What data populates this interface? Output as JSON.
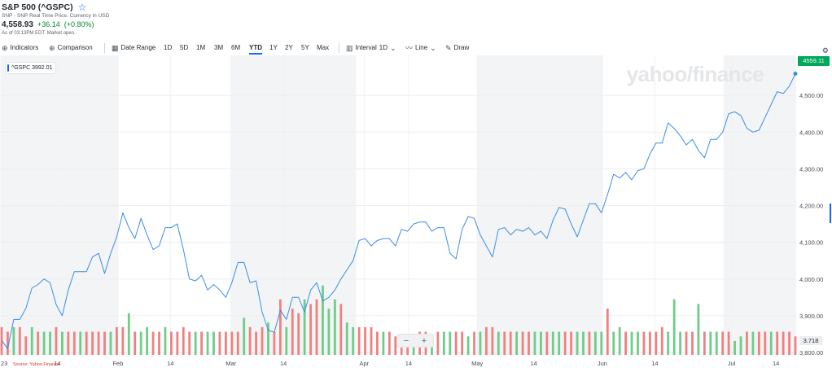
{
  "header": {
    "title": "S&P 500 (^GSPC)",
    "subtitle": "SNP - SNP Real Time Price. Currency in USD",
    "price": "4,558.93",
    "change": "+36.14",
    "change_pct": "(+0.80%)",
    "as_of": "As of 03:13PM EDT. Market open."
  },
  "toolbar": {
    "indicators": "Indicators",
    "comparison": "Comparison",
    "date_range": "Date Range",
    "ranges": [
      "1D",
      "5D",
      "1M",
      "3M",
      "6M",
      "YTD",
      "1Y",
      "2Y",
      "5Y",
      "Max"
    ],
    "active_range": "YTD",
    "interval": "Interval",
    "interval_value": "1D",
    "chart_type": "Line",
    "draw": "Draw"
  },
  "legend": {
    "label": "^GSPC 3992.01"
  },
  "last_price_label": "4559.11",
  "volume_label": "3.718",
  "source": "Source: Yahoo Finance",
  "watermark": "yahoo/finance",
  "zoom": {
    "minus": "−",
    "plus": "+"
  },
  "colors": {
    "line": "#3a8ee6",
    "up_volume": "#6fcc89",
    "down_volume": "#f08080",
    "accent": "#0f69ff",
    "positive": "#008a2e"
  },
  "icons": {
    "star": "star-icon",
    "indicators": "plus-circle-icon",
    "comparison": "plus-circle-icon",
    "date_range": "calendar-icon",
    "interval": "candle-icon",
    "line": "line-chart-icon",
    "draw": "pencil-icon",
    "settings": "gear-icon"
  },
  "chart_data": {
    "type": "line",
    "title": "S&P 500 (^GSPC)",
    "xlabel": "",
    "ylabel": "",
    "ylim": [
      3800,
      4600
    ],
    "y_ticks": [
      3800,
      3900,
      4000,
      4100,
      4200,
      4300,
      4400,
      4500
    ],
    "y_tick_labels": [
      "3,800.00",
      "3,900.00",
      "4,000.00",
      "4,100.00",
      "4,200.00",
      "4,300.00",
      "4,400.00",
      "4,500.00"
    ],
    "x_tick_labels": [
      {
        "label": "23",
        "date": "2023-01-03"
      },
      {
        "label": "14",
        "date": "2023-01-17"
      },
      {
        "label": "Feb",
        "date": "2023-02-01"
      },
      {
        "label": "14",
        "date": "2023-02-14"
      },
      {
        "label": "Mar",
        "date": "2023-03-01"
      },
      {
        "label": "14",
        "date": "2023-03-14"
      },
      {
        "label": "Apr",
        "date": "2023-04-03"
      },
      {
        "label": "14",
        "date": "2023-04-14"
      },
      {
        "label": "May",
        "date": "2023-05-01"
      },
      {
        "label": "14",
        "date": "2023-05-15"
      },
      {
        "label": "Jun",
        "date": "2023-06-01"
      },
      {
        "label": "14",
        "date": "2023-06-14"
      },
      {
        "label": "Jul",
        "date": "2023-07-03"
      },
      {
        "label": "14",
        "date": "2023-07-14"
      }
    ],
    "month_bands": [
      "2023-01",
      "2023-03",
      "2023-05",
      "2023-07"
    ],
    "grid": true,
    "legend": "top-left",
    "series": [
      {
        "name": "^GSPC",
        "values": [
          3833,
          3810,
          3890,
          3890,
          3920,
          3975,
          3985,
          4000,
          3990,
          3930,
          3900,
          3970,
          4020,
          4020,
          4020,
          4060,
          4070,
          4015,
          4070,
          4115,
          4180,
          4140,
          4110,
          4165,
          4120,
          4080,
          4090,
          4140,
          4140,
          4150,
          4080,
          4000,
          3995,
          4010,
          3970,
          3985,
          3970,
          3950,
          3990,
          4045,
          4045,
          3990,
          3995,
          3910,
          3860,
          3855,
          3915,
          3890,
          3950,
          3950,
          3910,
          3970,
          3990,
          3940,
          3950,
          3970,
          4000,
          4025,
          4050,
          4105,
          4110,
          4090,
          4105,
          4110,
          4110,
          4090,
          4135,
          4130,
          4150,
          4155,
          4155,
          4130,
          4140,
          4140,
          4070,
          4055,
          4135,
          4170,
          4165,
          4120,
          4090,
          4060,
          4135,
          4140,
          4120,
          4135,
          4130,
          4140,
          4120,
          4130,
          4110,
          4160,
          4195,
          4190,
          4150,
          4115,
          4160,
          4205,
          4205,
          4180,
          4230,
          4285,
          4275,
          4290,
          4270,
          4295,
          4300,
          4340,
          4370,
          4370,
          4425,
          4410,
          4390,
          4365,
          4380,
          4350,
          4330,
          4380,
          4380,
          4400,
          4450,
          4455,
          4445,
          4410,
          4400,
          4405,
          4440,
          4475,
          4510,
          4505,
          4525,
          4559
        ]
      },
      {
        "name": "Volume",
        "values": [
          3.9,
          3.8,
          3.9,
          3.9,
          3.7,
          3.9,
          3.8,
          3.8,
          3.8,
          3.9,
          3.8,
          3.8,
          3.8,
          3.8,
          3.8,
          3.8,
          3.8,
          3.8,
          3.8,
          3.9,
          3.9,
          4.2,
          3.8,
          3.8,
          3.9,
          3.8,
          3.8,
          3.9,
          3.8,
          3.8,
          3.9,
          3.8,
          3.8,
          3.8,
          3.8,
          3.8,
          3.8,
          3.8,
          3.8,
          3.8,
          4.1,
          3.9,
          3.8,
          3.9,
          4.0,
          3.8,
          4.5,
          3.9,
          4.3,
          4.2,
          4.5,
          4.4,
          4.5,
          4.8,
          4.3,
          4.5,
          4.4,
          4.0,
          3.9,
          3.9,
          3.9,
          3.9,
          3.8,
          3.8,
          3.8,
          3.7,
          3.7,
          3.7,
          3.7,
          3.8,
          3.8,
          3.7,
          3.8,
          3.8,
          3.8,
          3.8,
          3.8,
          3.7,
          3.8,
          3.8,
          3.9,
          3.9,
          3.8,
          3.8,
          3.8,
          3.8,
          3.8,
          3.8,
          3.8,
          3.8,
          3.8,
          3.8,
          3.8,
          3.8,
          3.8,
          3.8,
          3.8,
          3.8,
          3.8,
          3.8,
          4.3,
          3.8,
          3.9,
          3.8,
          3.8,
          3.8,
          3.8,
          3.8,
          3.8,
          3.9,
          3.8,
          4.5,
          3.8,
          3.8,
          3.8,
          4.4,
          3.8,
          3.8,
          3.8,
          3.8,
          3.8,
          3.6,
          3.7,
          3.8,
          3.8,
          3.8,
          3.8,
          3.8,
          3.8,
          3.8,
          3.8,
          3.7
        ],
        "direction": "ddudduduududduddddudduduuddudddduduuddddudddudduddudduuuduudddduddddudduduuddududduddudduuduudduuduuduuduudddduuudduduudduududdu"
      }
    ]
  }
}
